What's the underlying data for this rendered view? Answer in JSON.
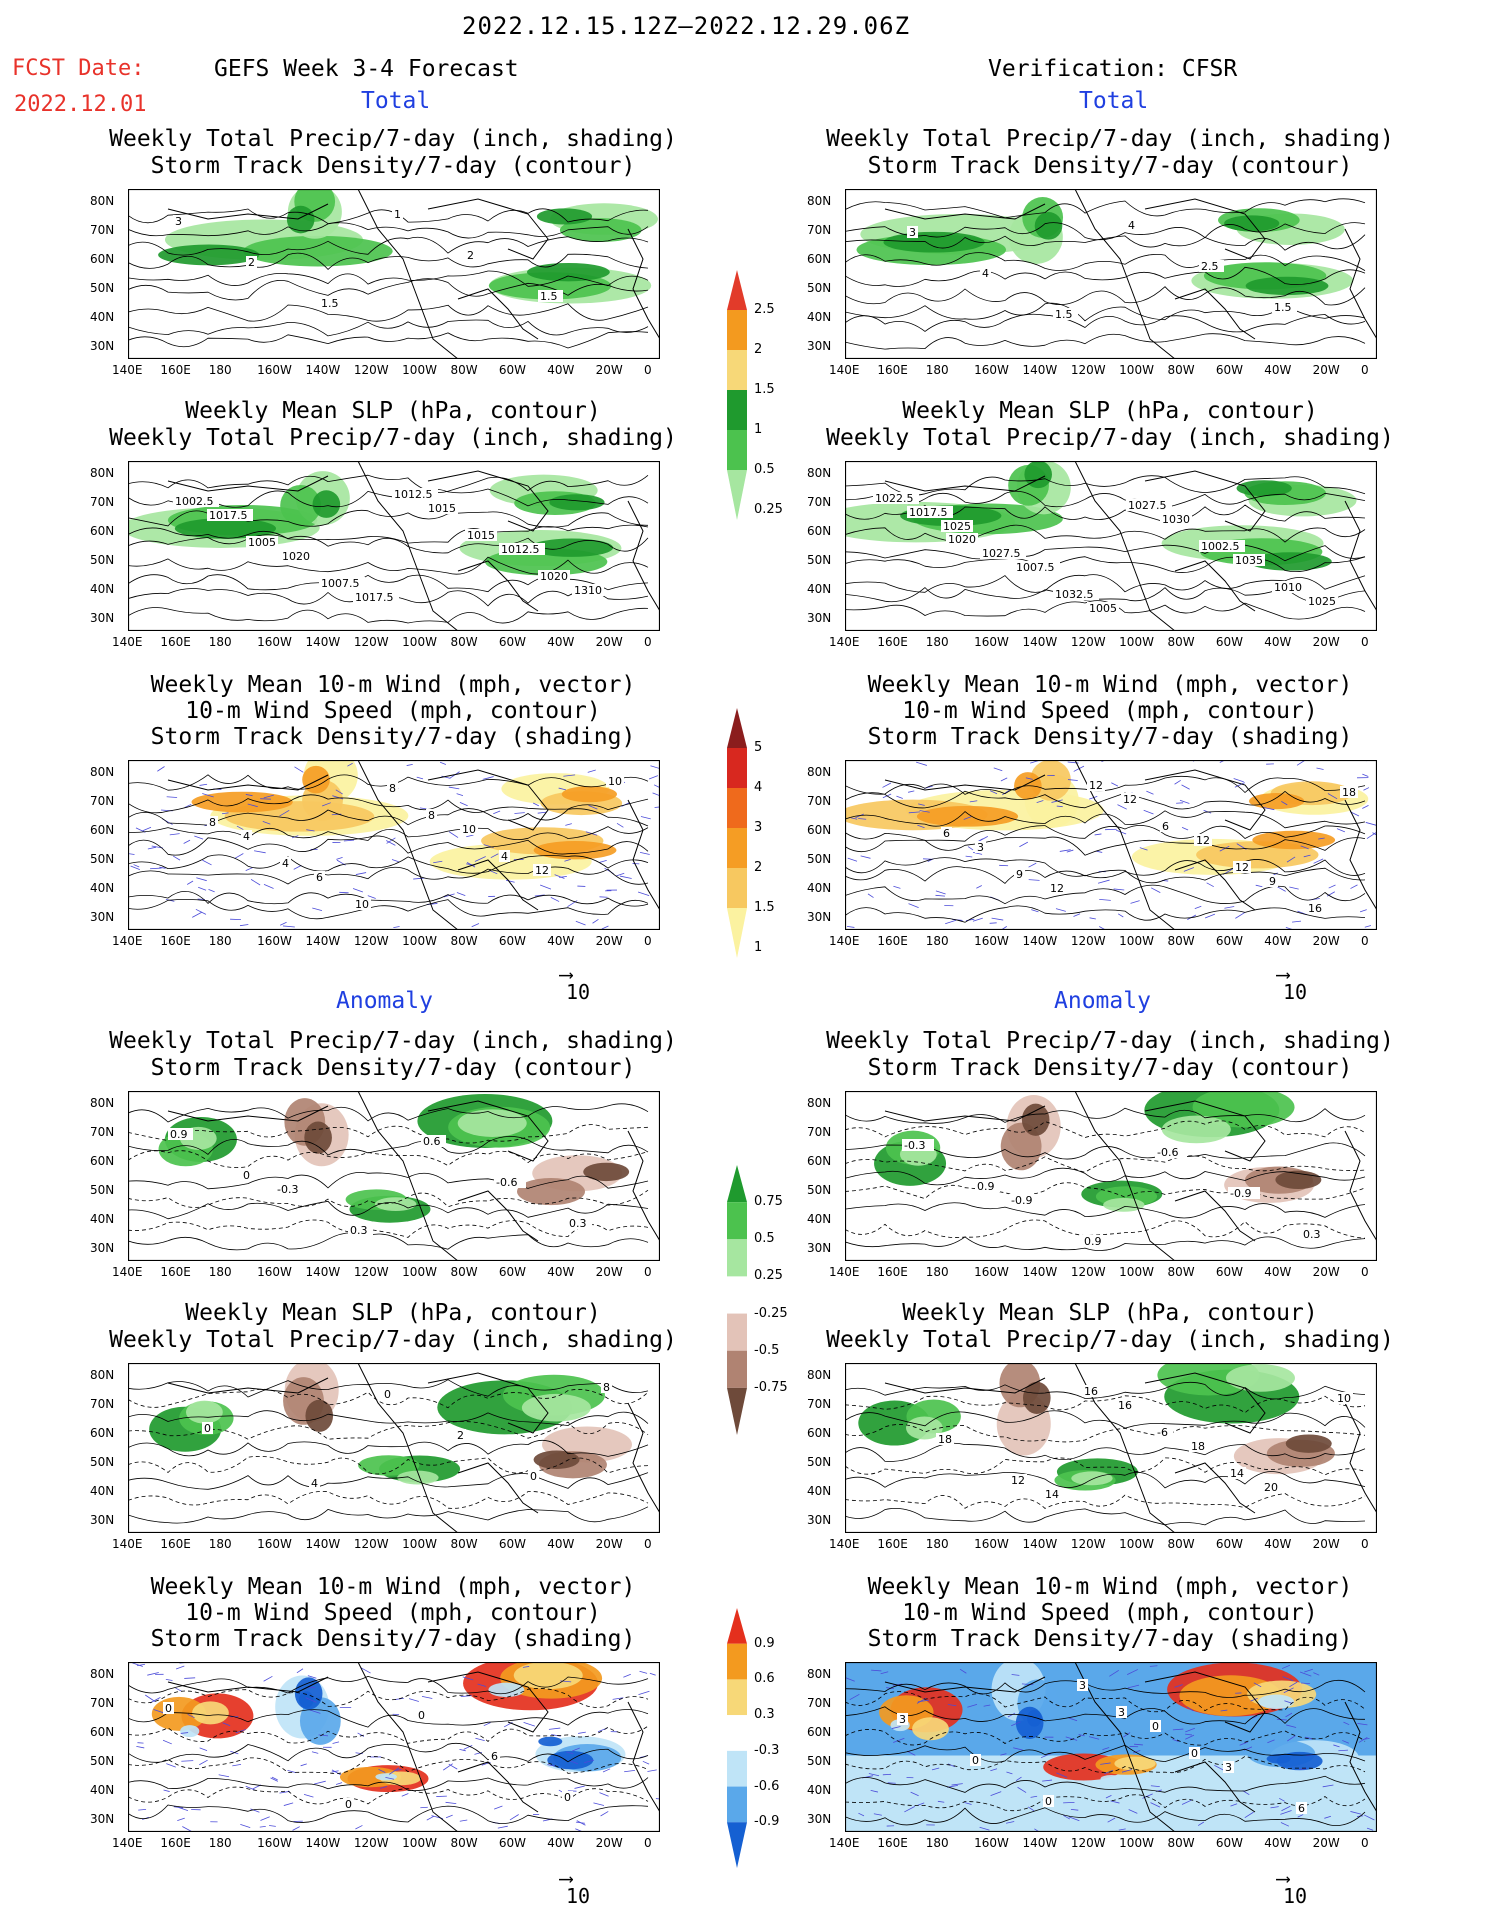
{
  "header": {
    "date_range": "2022.12.15.12Z—2022.12.29.06Z",
    "fcst_label": "FCST Date:",
    "fcst_date": "2022.12.01",
    "left_title": "GEFS Week 3-4 Forecast",
    "right_title": "Verification: CFSR",
    "total_label": "Total",
    "anomaly_label": "Anomaly"
  },
  "panel_titles": {
    "precip_storm": [
      "Weekly Total Precip/7-day (inch, shading)",
      "Storm Track Density/7-day (contour)"
    ],
    "slp_precip": [
      "Weekly Mean SLP (hPa, contour)",
      "Weekly Total Precip/7-day (inch, shading)"
    ],
    "wind": [
      "Weekly Mean 10-m Wind (mph, vector)",
      "10-m Wind Speed (mph, contour)",
      "Storm Track Density/7-day (shading)"
    ]
  },
  "axes": {
    "lat_labels": [
      "80N",
      "70N",
      "60N",
      "50N",
      "40N",
      "30N"
    ],
    "lon_labels": [
      "140E",
      "160E",
      "180",
      "160W",
      "140W",
      "120W",
      "100W",
      "80W",
      "60W",
      "40W",
      "20W",
      "0"
    ]
  },
  "vector_scale": "10",
  "colorbars": {
    "precip_total": {
      "labels": [
        "2.5",
        "2",
        "1.5",
        "1",
        "0.5",
        "0.25"
      ],
      "colors": [
        "#e23b2a",
        "#f39a1f",
        "#f7d878",
        "#1f9a2e",
        "#4cc24e",
        "#a6e6a0"
      ]
    },
    "storm_total": {
      "labels": [
        "5",
        "4",
        "3",
        "2",
        "1.5",
        "1"
      ],
      "colors": [
        "#8b1d1d",
        "#d8281f",
        "#ef6a1c",
        "#f59d24",
        "#f7c860",
        "#fbf2a0"
      ]
    },
    "precip_anom": {
      "labels": [
        "0.75",
        "0.5",
        "0.25",
        "-0.25",
        "-0.5",
        "-0.75"
      ],
      "colors": [
        "#1f9a2e",
        "#4cc24e",
        "#a6e6a0",
        "#ffffff",
        "#e3c3b8",
        "#b08372",
        "#6e4a3a"
      ]
    },
    "storm_anom": {
      "labels": [
        "0.9",
        "0.6",
        "0.3",
        "-0.3",
        "-0.6",
        "-0.9"
      ],
      "colors": [
        "#e4301d",
        "#f39a1f",
        "#f7d878",
        "#ffffff",
        "#bfe4f7",
        "#5aa8ea",
        "#1560d2"
      ]
    }
  },
  "contour_labels": {
    "p1": [
      "3",
      "2",
      "1.5",
      "1",
      "2",
      "1.5"
    ],
    "p2": [
      "3",
      "4",
      "1.5",
      "4",
      "2.5",
      "1.5"
    ],
    "p3": [
      "1017.5",
      "1020",
      "1017.5",
      "1015",
      "1012.5",
      "1310",
      "1002.5",
      "1005",
      "1007.5",
      "1012.5",
      "1015",
      "1020"
    ],
    "p4": [
      "1025",
      "1007.5",
      "1005",
      "1030",
      "1035",
      "1025",
      "1017.5",
      "1027.5",
      "1032.5",
      "1027.5",
      "1002.5",
      "1010",
      "1022.5",
      "1020"
    ],
    "p5": [
      "4",
      "6",
      "8",
      "10",
      "12",
      "10",
      "8",
      "4",
      "10",
      "8",
      "4"
    ],
    "p6": [
      "3",
      "12",
      "12",
      "12",
      "9",
      "18",
      "6",
      "9",
      "12",
      "6",
      "12",
      "16"
    ],
    "p7": [
      "-0.3",
      "0.3",
      "0.6",
      "-0.6",
      "0.3",
      "0.9",
      "0"
    ],
    "p8": [
      "-0.9",
      "0.9",
      "-0.6",
      "-0.9",
      "0.3",
      "-0.3",
      "0.9"
    ],
    "p9": [
      "4",
      "0",
      "2",
      "0",
      "8",
      "0"
    ],
    "p10": [
      "14",
      "16",
      "18",
      "20",
      "10",
      "18",
      "12",
      "16",
      "-6",
      "14"
    ],
    "p11": [
      "0",
      "0",
      "6",
      "0",
      "0"
    ],
    "p12": [
      "3",
      "0",
      "3",
      "6",
      "3",
      "0",
      "0",
      "3",
      "0"
    ]
  }
}
